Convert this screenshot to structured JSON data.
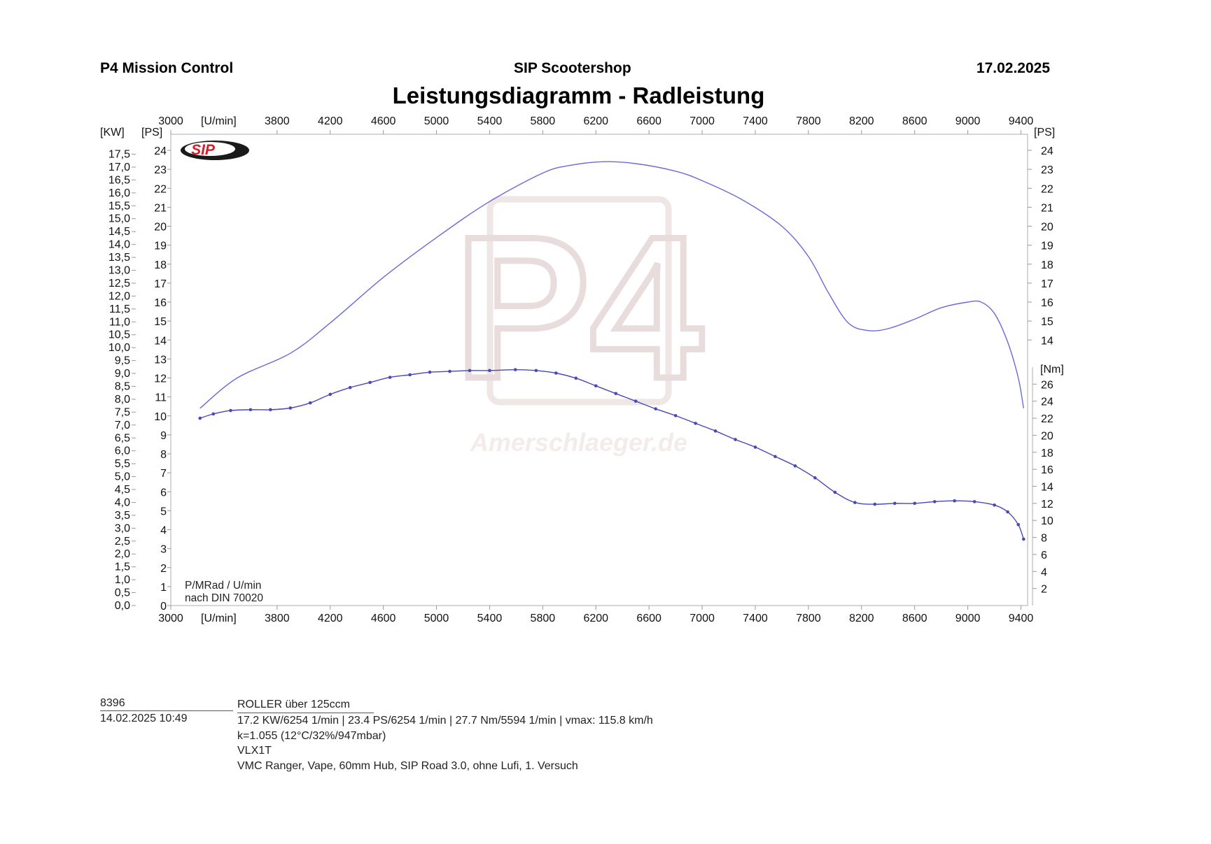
{
  "header": {
    "left": "P4 Mission Control",
    "center": "SIP Scootershop",
    "date": "17.02.2025"
  },
  "chart_data": {
    "type": "line",
    "title": "Leistungsdiagramm - Radleistung",
    "x_unit_label": "[U/min]",
    "left_axis_kw_label": "[KW]",
    "left_axis_ps_label": "[PS]",
    "right_axis_ps_label": "[PS]",
    "right_axis_nm_label": "[Nm]",
    "xlim": [
      3000,
      9450
    ],
    "x_ticks": [
      3000,
      3800,
      4200,
      4600,
      5000,
      5400,
      5800,
      6200,
      6600,
      7000,
      7400,
      7800,
      8200,
      8600,
      9000,
      9400
    ],
    "ps_ylim": [
      0,
      24
    ],
    "ps_ticks": [
      0,
      1,
      2,
      3,
      4,
      5,
      6,
      7,
      8,
      9,
      10,
      11,
      12,
      13,
      14,
      15,
      16,
      17,
      18,
      19,
      20,
      21,
      22,
      23,
      24
    ],
    "right_ps_ticks": [
      14,
      15,
      16,
      17,
      18,
      19,
      20,
      21,
      22,
      23,
      24
    ],
    "kw_ylim": [
      0,
      17.65
    ],
    "kw_ticks": [
      "0,0",
      "0,5",
      "1,0",
      "1,5",
      "2,0",
      "2,5",
      "3,0",
      "3,5",
      "4,0",
      "4,5",
      "5,0",
      "5,5",
      "6,0",
      "6,5",
      "7,0",
      "7,5",
      "8,0",
      "8,5",
      "9,0",
      "9,5",
      "10,0",
      "10,5",
      "11,0",
      "11,5",
      "12,0",
      "12,5",
      "13,0",
      "13,5",
      "14,0",
      "14,5",
      "15,0",
      "15,5",
      "16,0",
      "16,5",
      "17,0",
      "17,5"
    ],
    "nm_ylim": [
      0,
      28
    ],
    "nm_ticks": [
      2,
      4,
      6,
      8,
      10,
      12,
      14,
      16,
      18,
      20,
      22,
      24,
      26
    ],
    "series": [
      {
        "name": "",
        "axis": "ps",
        "color": "#6a6ad8",
        "markers": false,
        "x": [
          3220,
          3500,
          3900,
          4200,
          4600,
          5000,
          5400,
          5800,
          6000,
          6254,
          6500,
          6800,
          7000,
          7300,
          7600,
          7800,
          7950,
          8100,
          8250,
          8400,
          8600,
          8800,
          9000,
          9100,
          9200,
          9300,
          9380,
          9420
        ],
        "y": [
          10.4,
          12.0,
          13.3,
          14.9,
          17.3,
          19.4,
          21.3,
          22.8,
          23.2,
          23.4,
          23.3,
          22.9,
          22.4,
          21.4,
          20.0,
          18.4,
          16.5,
          14.9,
          14.5,
          14.6,
          15.1,
          15.7,
          16.0,
          16.0,
          15.4,
          13.9,
          12.0,
          10.4
        ]
      },
      {
        "name": "",
        "axis": "nm",
        "color": "#4848b8",
        "markers": true,
        "x": [
          3220,
          3320,
          3450,
          3600,
          3750,
          3900,
          4050,
          4200,
          4350,
          4500,
          4650,
          4800,
          4950,
          5100,
          5250,
          5400,
          5594,
          5750,
          5900,
          6050,
          6200,
          6350,
          6500,
          6650,
          6800,
          6950,
          7100,
          7250,
          7400,
          7550,
          7700,
          7850,
          8000,
          8150,
          8300,
          8450,
          8600,
          8750,
          8900,
          9050,
          9200,
          9300,
          9380,
          9420
        ],
        "y": [
          22.0,
          22.5,
          22.9,
          23.0,
          23.0,
          23.2,
          23.8,
          24.8,
          25.6,
          26.2,
          26.8,
          27.1,
          27.4,
          27.5,
          27.6,
          27.6,
          27.7,
          27.6,
          27.3,
          26.7,
          25.8,
          24.9,
          24.0,
          23.1,
          22.3,
          21.4,
          20.5,
          19.5,
          18.6,
          17.5,
          16.4,
          15.0,
          13.3,
          12.1,
          11.9,
          12.0,
          12.0,
          12.2,
          12.3,
          12.2,
          11.8,
          11.0,
          9.5,
          7.8
        ]
      }
    ],
    "annotation_line1": "P/MRad / U/min",
    "annotation_line2": "nach DIN 70020",
    "watermark": "P4",
    "watermark_url": "Amerschlaeger.de",
    "logo_text": "SIP"
  },
  "footer": {
    "id": "8396",
    "datetime": "14.02.2025  10:49",
    "lines": [
      "ROLLER über 125ccm",
      "17.2 KW/6254 1/min  |  23.4 PS/6254 1/min  |  27.7 Nm/5594 1/min | vmax: 115.8 km/h",
      "k=1.055 (12°C/32%/947mbar)",
      "VLX1T",
      "VMC Ranger, Vape, 60mm Hub, SIP Road 3.0, ohne Lufi, 1. Versuch"
    ]
  }
}
